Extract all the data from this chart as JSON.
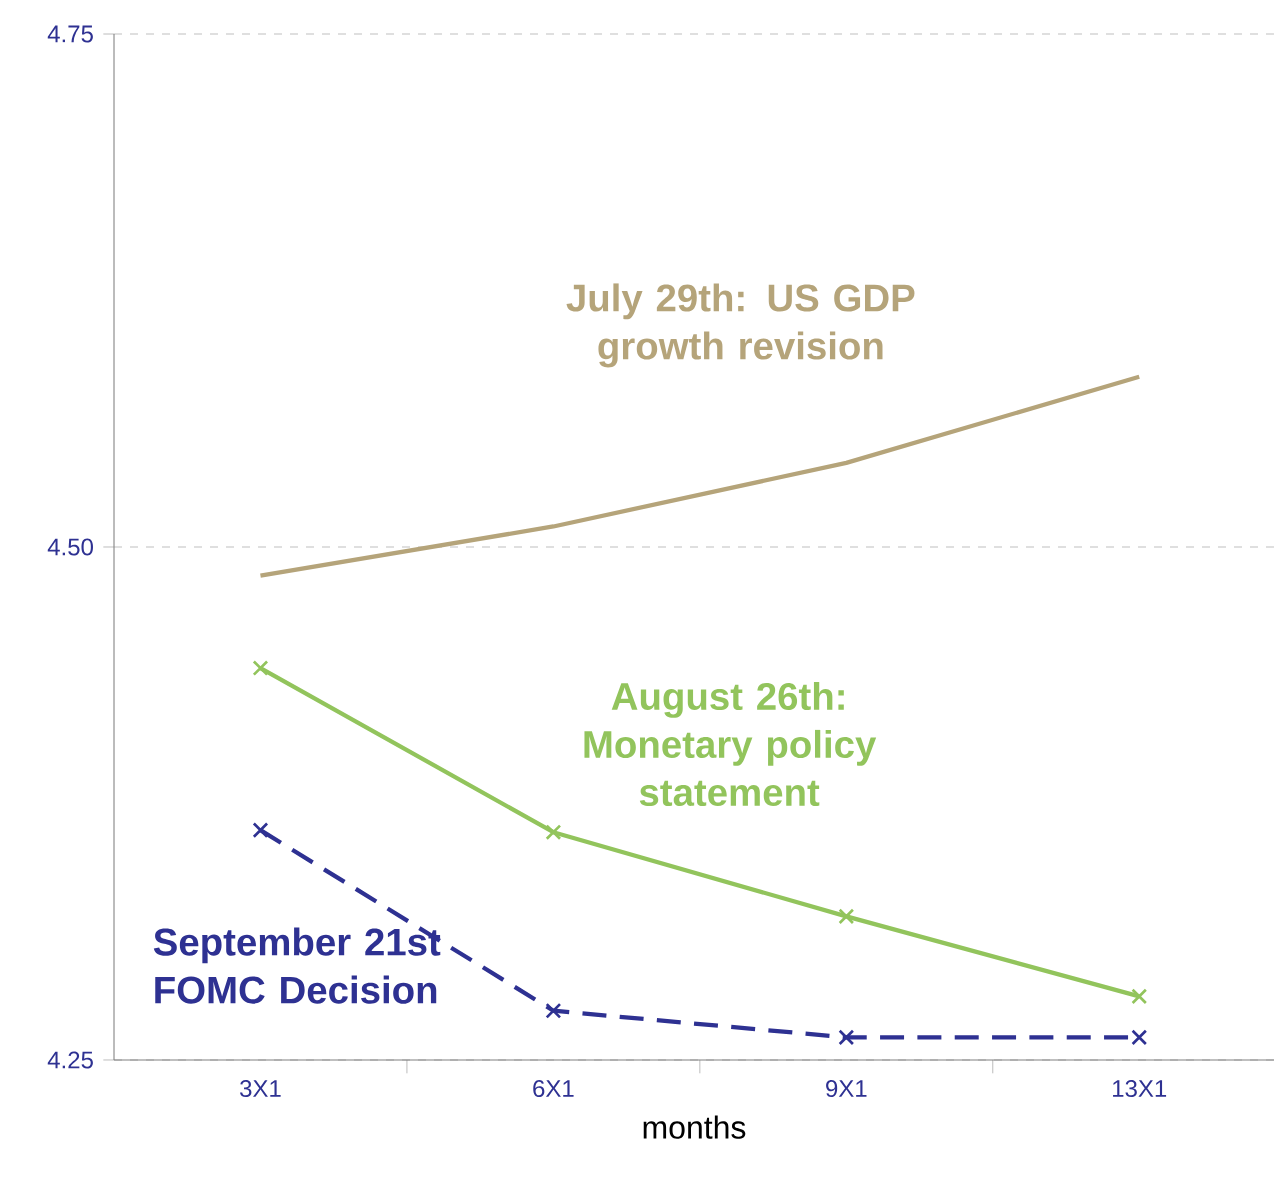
{
  "chart_data": {
    "type": "line",
    "xlabel": "months",
    "categories": [
      "3X1",
      "6X1",
      "9X1",
      "13X1"
    ],
    "ylim": [
      4.25,
      4.75
    ],
    "yticks": [
      {
        "value": 4.25,
        "label": "4.25"
      },
      {
        "value": 4.5,
        "label": "4.50"
      },
      {
        "value": 4.75,
        "label": "4.75"
      }
    ],
    "grid": "y",
    "legend": false,
    "series": [
      {
        "name": "July 29th: US GDP growth revision",
        "color": "#b5a47a",
        "values": [
          4.486,
          4.51,
          4.541,
          4.583
        ],
        "marker": "none",
        "line_style": "solid"
      },
      {
        "name": "August 26th: Monetary policy statement",
        "color": "#92c45c",
        "values": [
          4.441,
          4.361,
          4.32,
          4.281
        ],
        "marker": "cross",
        "line_style": "solid"
      },
      {
        "name": "September 21st FOMC Decision",
        "color": "#2e3192",
        "values": [
          4.362,
          4.274,
          4.261,
          4.261
        ],
        "marker": "cross",
        "line_style": "dashed"
      }
    ]
  }
}
